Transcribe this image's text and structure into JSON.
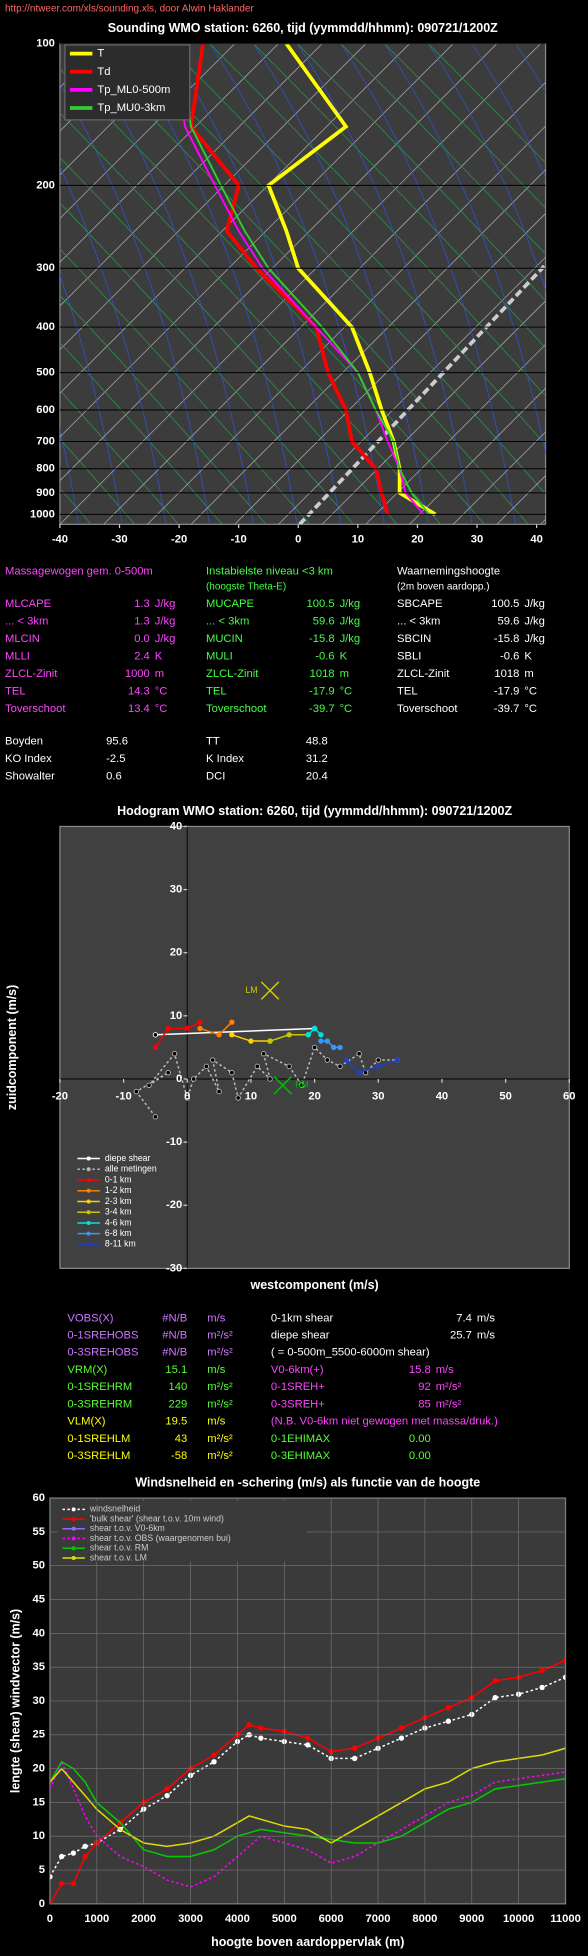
{
  "header": {
    "url": "http://ntweer.com/xls/sounding.xls, door Alwin Haklander"
  },
  "chart_data": [
    {
      "type": "skewt",
      "title": "Sounding WMO station:  6260, tijd (yymmdd/hhmm): 090721/1200Z",
      "xlim": [
        -40,
        41.5
      ],
      "xticks": [
        -40,
        -30,
        -20,
        -10,
        0,
        10,
        20,
        30,
        40
      ],
      "ylim": [
        100,
        1050
      ],
      "yticks": [
        100,
        200,
        300,
        400,
        500,
        600,
        700,
        800,
        900,
        1000
      ],
      "ylog": true,
      "legend": "upper left",
      "y": [
        100,
        150,
        200,
        250,
        300,
        400,
        500,
        600,
        700,
        800,
        900,
        1000
      ],
      "series": [
        {
          "name": "T",
          "color": "#ffff00",
          "values": [
            -2,
            8,
            -5,
            -2,
            0,
            9,
            12,
            14,
            16,
            17,
            17,
            23
          ]
        },
        {
          "name": "Td",
          "color": "#ff0000",
          "values": [
            -16,
            -18,
            -10,
            -12,
            -7,
            3,
            5,
            8,
            9,
            13,
            14,
            15
          ]
        },
        {
          "name": "Tp_ML0-500m",
          "color": "#ff00ff",
          "values": [
            -21,
            -19,
            -14,
            -10,
            -6,
            3,
            10,
            13,
            15,
            17,
            18,
            21
          ]
        },
        {
          "name": "Tp_MU0-3km",
          "color": "#33cc33",
          "values": [
            -20,
            -18,
            -13,
            -9,
            -5,
            4,
            10,
            13,
            16,
            17,
            19,
            22
          ]
        }
      ]
    },
    {
      "type": "hodograph",
      "title": "Hodogram WMO station:  6260, tijd (yymmdd/hhmm): 090721/1200Z",
      "xlabel": "westcomponent  (m/s)",
      "ylabel": "zuidcomponent (m/s)",
      "xlim": [
        -20,
        60
      ],
      "xticks": [
        -20,
        -10,
        0,
        10,
        20,
        30,
        40,
        50,
        60
      ],
      "ylim": [
        -30,
        40
      ],
      "yticks": [
        -30,
        -20,
        -10,
        0,
        10,
        20,
        30,
        40
      ],
      "legend": "lower left",
      "series": [
        {
          "name": "diepe shear",
          "color": "#ffffff",
          "x": [
            -5,
            20
          ],
          "values": [
            7,
            8
          ]
        },
        {
          "name": "alle metingen",
          "color": "#bbbbbb",
          "dashed": true,
          "x": [
            -5,
            -8,
            -3,
            -6,
            -2,
            0,
            1,
            3,
            5,
            4,
            7,
            8,
            11,
            13,
            12,
            16,
            18,
            20,
            22,
            24,
            27,
            28,
            30,
            33
          ],
          "values": [
            -6,
            -2,
            1,
            -1,
            4,
            -3,
            0,
            2,
            -2,
            3,
            1,
            -3,
            2,
            0,
            4,
            2,
            -1,
            5,
            3,
            2,
            4,
            1,
            3,
            3
          ]
        },
        {
          "name": "0-1 km",
          "color": "#ff0000",
          "x": [
            -5,
            -3,
            0,
            2
          ],
          "values": [
            5,
            8,
            8,
            9
          ]
        },
        {
          "name": "1-2 km",
          "color": "#ff8000",
          "x": [
            2,
            5,
            7
          ],
          "values": [
            8,
            7,
            9
          ]
        },
        {
          "name": "2-3 km",
          "color": "#ffd000",
          "x": [
            7,
            10,
            13
          ],
          "values": [
            7,
            6,
            6
          ]
        },
        {
          "name": "3-4 km",
          "color": "#c8c800",
          "x": [
            13,
            16,
            19
          ],
          "values": [
            6,
            7,
            7
          ]
        },
        {
          "name": "4-6 km",
          "color": "#00e0e0",
          "x": [
            19,
            20,
            21
          ],
          "values": [
            7,
            8,
            7
          ]
        },
        {
          "name": "6-8 km",
          "color": "#3399ff",
          "x": [
            21,
            22,
            23,
            24
          ],
          "values": [
            6,
            6,
            5,
            5
          ]
        },
        {
          "name": "8-11 km",
          "color": "#2040c0",
          "x": [
            25,
            27,
            30,
            33
          ],
          "values": [
            3,
            1,
            2,
            3
          ]
        }
      ],
      "markers": [
        {
          "label": "LM",
          "x": 13,
          "y": 14,
          "color": "#cccc00"
        },
        {
          "label": "RM",
          "x": 15,
          "y": -1,
          "color": "#00bb00"
        }
      ]
    },
    {
      "type": "line",
      "title": "Windsnelheid en -schering (m/s) als functie van de hoogte",
      "xlabel": "hoogte boven aardoppervlak (m)",
      "ylabel": "lengte (shear) windvector (m/s)",
      "xlim": [
        0,
        11000
      ],
      "xticks": [
        0,
        1000,
        2000,
        3000,
        4000,
        5000,
        6000,
        7000,
        8000,
        9000,
        10000,
        11000
      ],
      "ylim": [
        0,
        60
      ],
      "yticks": [
        0,
        5,
        10,
        15,
        20,
        25,
        30,
        35,
        40,
        45,
        50,
        55,
        60
      ],
      "grid": true,
      "legend": "upper left",
      "x": [
        0,
        250,
        500,
        750,
        1000,
        1500,
        2000,
        2500,
        3000,
        3500,
        4000,
        4250,
        4500,
        5000,
        5500,
        6000,
        6500,
        7000,
        7500,
        8000,
        8500,
        9000,
        9500,
        10000,
        10500,
        11000
      ],
      "series": [
        {
          "name": "windsnelheid",
          "color": "#ffffff",
          "dashed": true,
          "marker": "circle",
          "values": [
            4,
            7,
            7.5,
            8.5,
            9,
            11,
            14,
            16,
            19,
            21,
            24,
            25,
            24.5,
            24,
            23.5,
            21.5,
            21.5,
            23,
            24.5,
            26,
            27,
            28,
            30.5,
            31,
            32,
            33.5
          ]
        },
        {
          "name": "'bulk shear' (shear t.o.v. 10m wind)",
          "color": "#ff0000",
          "marker": "circle",
          "values": [
            0,
            3,
            3,
            7,
            9,
            12,
            15,
            17,
            20,
            22,
            25,
            26.5,
            26,
            25.5,
            24.5,
            22.5,
            23,
            24.5,
            26,
            27.5,
            29,
            30.5,
            33,
            33.5,
            34.5,
            36
          ]
        },
        {
          "name": "shear t.o.v. V0-6km",
          "color": "#9966ff",
          "values": [
            null,
            null,
            null,
            null,
            null,
            null,
            null,
            null,
            null,
            null,
            null,
            null,
            null,
            null,
            null,
            null,
            null,
            null,
            null,
            null,
            null,
            null,
            null,
            null,
            null,
            null
          ]
        },
        {
          "name": "shear t.o.v. OBS (waargenomen bui)",
          "color": "#ff00ff",
          "dashed": true,
          "values": [
            17,
            21,
            17,
            13,
            10,
            7,
            5.5,
            3.5,
            2.5,
            4,
            7,
            8.5,
            10,
            9,
            8,
            6,
            7,
            9,
            11,
            13,
            15,
            16,
            18,
            18.5,
            19,
            19.5
          ]
        },
        {
          "name": "shear t.o.v. RM",
          "color": "#00cc00",
          "values": [
            18,
            21,
            20,
            18,
            15,
            12,
            8,
            7,
            7,
            8,
            10,
            10.5,
            11,
            10.5,
            10,
            9.5,
            9,
            9,
            10,
            12,
            14,
            15,
            17,
            17.5,
            18,
            18.5
          ]
        },
        {
          "name": "shear t.o.v. LM",
          "color": "#dddd00",
          "values": [
            18,
            20,
            18,
            16,
            14,
            11,
            9,
            8.5,
            9,
            10,
            12,
            13,
            12.5,
            11.5,
            11,
            9,
            11,
            13,
            15,
            17,
            18,
            20,
            21,
            21.5,
            22,
            23
          ]
        }
      ]
    }
  ],
  "params": [
    {
      "title": "Massagewogen gem. 0-500m",
      "rows": [
        [
          "MLCAPE",
          "1.3",
          "J/kg"
        ],
        [
          "... < 3km",
          "1.3",
          "J/kg"
        ],
        [
          "MLCIN",
          "0.0",
          "J/kg"
        ],
        [
          "MLLI",
          "2.4",
          "K"
        ],
        [
          "ZLCL-Zinit",
          "1000",
          "m"
        ],
        [
          "TEL",
          "14.3",
          "°C"
        ],
        [
          "Toverschoot",
          "13.4",
          "°C"
        ]
      ]
    },
    {
      "title": "Instabielste niveau <3 km",
      "subtitle": "(hoogste Theta-E)",
      "rows": [
        [
          "MUCAPE",
          "100.5",
          "J/kg"
        ],
        [
          "... < 3km",
          "59.6",
          "J/kg"
        ],
        [
          "MUCIN",
          "-15.8",
          "J/kg"
        ],
        [
          "MULI",
          "-0.6",
          "K"
        ],
        [
          "ZLCL-Zinit",
          "1018",
          "m"
        ],
        [
          "TEL",
          "-17.9",
          "°C"
        ],
        [
          "Toverschoot",
          "-39.7",
          "°C"
        ]
      ]
    },
    {
      "title": "Waarnemingshoogte",
      "subtitle": "(2m boven aardopp.)",
      "rows": [
        [
          "SBCAPE",
          "100.5",
          "J/kg"
        ],
        [
          "... < 3km",
          "59.6",
          "J/kg"
        ],
        [
          "SBCIN",
          "-15.8",
          "J/kg"
        ],
        [
          "SBLI",
          "-0.6",
          "K"
        ],
        [
          "ZLCL-Zinit",
          "1018",
          "m"
        ],
        [
          "TEL",
          "-17.9",
          "°C"
        ],
        [
          "Toverschoot",
          "-39.7",
          "°C"
        ]
      ]
    }
  ],
  "indices": [
    [
      [
        "Boyden",
        "95.6"
      ],
      [
        "KO Index",
        "-2.5"
      ],
      [
        "Showalter",
        "0.6"
      ]
    ],
    [
      [
        "TT",
        "48.8"
      ],
      [
        "K Index",
        "31.2"
      ],
      [
        "DCI",
        "20.4"
      ]
    ]
  ],
  "hodo_stats": {
    "left": [
      [
        "VOBS(X)",
        "#N/B",
        "m/s"
      ],
      [
        "0-1SREHOBS",
        "#N/B",
        "m²/s²"
      ],
      [
        "0-3SREHOBS",
        "#N/B",
        "m²/s²"
      ],
      [
        "VRM(X)",
        "15.1",
        "m/s"
      ],
      [
        "0-1SREHRM",
        "140",
        "m²/s²"
      ],
      [
        "0-3SREHRM",
        "229",
        "m²/s²"
      ],
      [
        "VLM(X)",
        "19.5",
        "m/s"
      ],
      [
        "0-1SREHLM",
        "43",
        "m²/s²"
      ],
      [
        "0-3SREHLM",
        "-58",
        "m²/s²"
      ]
    ],
    "right": [
      [
        "0-1km shear",
        "7.4",
        "m/s"
      ],
      [
        "diepe shear",
        "25.7",
        "m/s"
      ],
      [
        "( = 0-500m_5500-6000m shear)"
      ],
      [
        "V0-6km(+)",
        "15.8",
        "m/s"
      ],
      [
        "0-1SREH+",
        "92",
        "m²/s²"
      ],
      [
        "0-3SREH+",
        "85",
        "m²/s²"
      ],
      [
        "(N.B. V0-6km niet gewogen met massa/druk.)"
      ],
      [
        "0-1EHIMAX",
        "0.00"
      ],
      [
        "0-3EHIMAX",
        "0.00"
      ]
    ]
  }
}
